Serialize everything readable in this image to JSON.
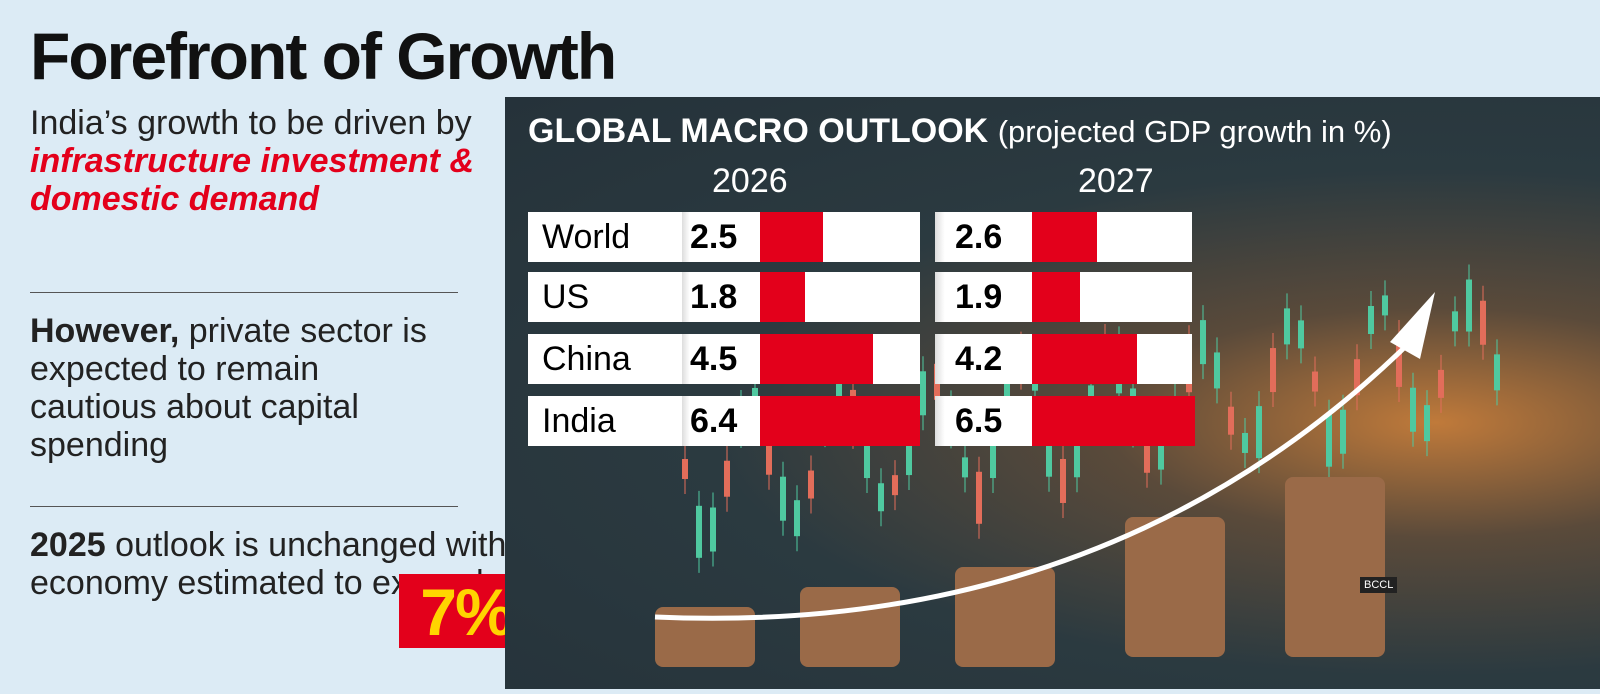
{
  "title": "Forefront of Growth",
  "left_panel": {
    "p1_plain": "India’s growth to be driven by ",
    "p1_highlight": "infrastructure investment & domestic demand",
    "p2_bold": "However,",
    "p2_rest": " private sector is expected to remain cautious about capital spending",
    "p3_bold": "2025",
    "p3_rest": " outlook is unchanged with economy estimated to expand",
    "badge": "7%"
  },
  "colors": {
    "accent": "#e3001b",
    "background": "#dcebf5",
    "badge_text": "#ffd400"
  },
  "chart_data": {
    "type": "bar",
    "title": "GLOBAL MACRO OUTLOOK",
    "subtitle": "(projected GDP growth in %)",
    "categories": [
      "World",
      "US",
      "China",
      "India"
    ],
    "series": [
      {
        "name": "2026",
        "values": [
          2.5,
          1.8,
          4.5,
          6.4
        ]
      },
      {
        "name": "2027",
        "values": [
          2.6,
          1.9,
          4.2,
          6.5
        ]
      }
    ],
    "orientation": "horizontal",
    "value_labels": [
      [
        "2.5",
        "1.8",
        "4.5",
        "6.4"
      ],
      [
        "2.6",
        "1.9",
        "4.2",
        "6.5"
      ]
    ]
  },
  "photo_credit": "BCCL"
}
